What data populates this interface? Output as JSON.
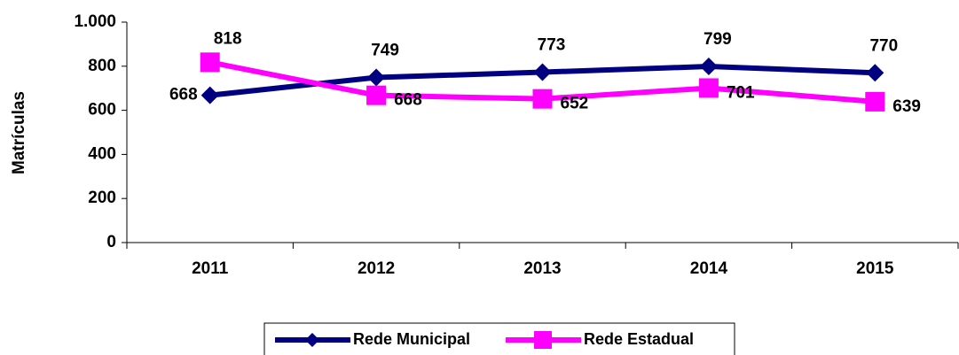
{
  "chart_data": {
    "type": "line",
    "y_label": "Matrículas",
    "categories": [
      "2011",
      "2012",
      "2013",
      "2014",
      "2015"
    ],
    "series": [
      {
        "name": "Rede Municipal",
        "color": "#000080",
        "marker": "diamond",
        "values": [
          668,
          749,
          773,
          799,
          770
        ]
      },
      {
        "name": "Rede Estadual",
        "color": "#ff00ff",
        "marker": "square",
        "values": [
          818,
          668,
          652,
          701,
          639
        ]
      }
    ],
    "ylim": [
      0,
      1000
    ],
    "yticks": [
      0,
      200,
      400,
      600,
      800,
      {
        "value": 1000,
        "label": "1.000"
      }
    ],
    "grid": false,
    "legend": "bottom"
  }
}
